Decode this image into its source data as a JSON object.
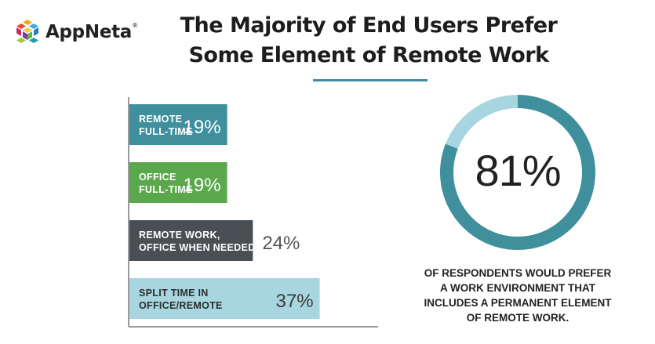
{
  "brand": {
    "name": "AppNeta",
    "trademark": "®"
  },
  "title_lines": [
    "The Majority of End Users Prefer",
    "Some Element of Remote Work"
  ],
  "chart_data": [
    {
      "type": "bar",
      "orientation": "horizontal",
      "categories": [
        [
          "REMOTE",
          "FULL-TIME"
        ],
        [
          "OFFICE",
          "FULL-TIME"
        ],
        [
          "REMOTE WORK,",
          "OFFICE WHEN NEEDED"
        ],
        [
          "SPLIT TIME  IN",
          "OFFICE/REMOTE"
        ]
      ],
      "values": [
        19,
        19,
        24,
        37
      ],
      "value_labels": [
        "19%",
        "19%",
        "24%",
        "37%"
      ],
      "colors": [
        "#3f8f9c",
        "#5ba84c",
        "#4a4f54",
        "#a8d6e0"
      ],
      "value_label_placement": [
        "inside",
        "inside",
        "outside",
        "inside"
      ],
      "xlim": [
        0,
        45
      ],
      "grid": false,
      "title": "",
      "xlabel": "",
      "ylabel": ""
    },
    {
      "type": "pie",
      "variant": "donut",
      "values": [
        81,
        19
      ],
      "colors": [
        "#3f8f9c",
        "#a8d6e0"
      ],
      "center_label": "81%"
    }
  ],
  "caption_lines": [
    "OF RESPONDENTS WOULD PREFER",
    "A WORK ENVIRONMENT THAT",
    "INCLUDES A PERMANENT ELEMENT",
    "OF REMOTE WORK."
  ]
}
